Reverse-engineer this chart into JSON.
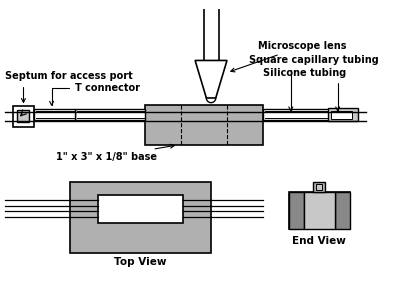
{
  "bg_color": "#ffffff",
  "gray_light": "#c8c8c8",
  "gray_mid": "#b0b0b0",
  "gray_dark": "#888888",
  "line_color": "#000000",
  "fig_width": 4.0,
  "fig_height": 2.86,
  "dpi": 100,
  "labels": {
    "septum": "Septum for access port",
    "t_connector": "T connector",
    "base": "1\" x 3\" x 1/8\" base",
    "microscope": "Microscope lens",
    "square_cap": "Square capillary tubing",
    "silicone": "Silicone tubing",
    "top_view": "Top View",
    "end_view": "End View"
  }
}
